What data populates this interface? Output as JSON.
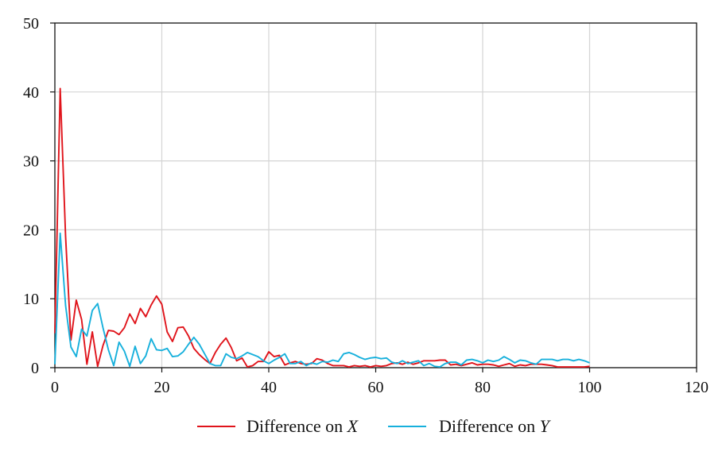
{
  "chart_data": {
    "type": "line",
    "title": "",
    "xlabel": "",
    "ylabel": "",
    "xlim": [
      0,
      120
    ],
    "ylim": [
      0,
      50
    ],
    "xticks": [
      0,
      20,
      40,
      60,
      80,
      100,
      120
    ],
    "yticks": [
      0,
      10,
      20,
      30,
      40,
      50
    ],
    "grid": true,
    "legend_position": "bottom-center",
    "x": [
      0,
      1,
      2,
      3,
      4,
      5,
      6,
      7,
      8,
      9,
      10,
      11,
      12,
      13,
      14,
      15,
      16,
      17,
      18,
      19,
      20,
      21,
      22,
      23,
      24,
      25,
      26,
      27,
      28,
      29,
      30,
      31,
      32,
      33,
      34,
      35,
      36,
      37,
      38,
      39,
      40,
      41,
      42,
      43,
      44,
      45,
      46,
      47,
      48,
      49,
      50,
      51,
      52,
      53,
      54,
      55,
      56,
      57,
      58,
      59,
      60,
      61,
      62,
      63,
      64,
      65,
      66,
      67,
      68,
      69,
      70,
      71,
      72,
      73,
      74,
      75,
      76,
      77,
      78,
      79,
      80,
      81,
      82,
      83,
      84,
      85,
      86,
      87,
      88,
      89,
      90,
      91,
      92,
      93,
      94,
      95,
      96,
      97,
      98,
      99,
      100
    ],
    "series": [
      {
        "name": "Difference on X",
        "legend_prefix": "Difference on ",
        "legend_var": "X",
        "color": "#e0141b",
        "values": [
          5,
          40.5,
          19,
          4,
          9.8,
          7,
          0.5,
          5.2,
          0.2,
          3.2,
          5.4,
          5.3,
          4.8,
          5.8,
          7.8,
          6.4,
          8.6,
          7.4,
          9.1,
          10.4,
          9.2,
          5.2,
          3.8,
          5.8,
          5.9,
          4.6,
          2.8,
          1.9,
          1.2,
          0.6,
          2.2,
          3.4,
          4.3,
          2.9,
          1.0,
          1.4,
          0.1,
          0.3,
          0.9,
          0.9,
          2.3,
          1.6,
          1.8,
          0.4,
          0.7,
          0.9,
          0.6,
          0.5,
          0.6,
          1.3,
          1.1,
          0.6,
          0.3,
          0.3,
          0.3,
          0.1,
          0.3,
          0.2,
          0.3,
          0.1,
          0.3,
          0.2,
          0.3,
          0.6,
          0.7,
          0.5,
          0.8,
          0.5,
          0.7,
          1.0,
          1.0,
          1.0,
          1.1,
          1.1,
          0.4,
          0.5,
          0.3,
          0.5,
          0.7,
          0.4,
          0.5,
          0.5,
          0.4,
          0.2,
          0.4,
          0.6,
          0.2,
          0.4,
          0.3,
          0.5,
          0.5,
          0.5,
          0.4,
          0.3,
          0.1,
          0.1,
          0.1,
          0.1,
          0.1,
          0.1,
          0.2
        ]
      },
      {
        "name": "Difference on Y",
        "legend_prefix": "Difference on ",
        "legend_var": "Y",
        "color": "#17b0dc",
        "values": [
          0.5,
          19.5,
          9,
          3,
          1.6,
          5.6,
          4.6,
          8.3,
          9.3,
          5.8,
          2.6,
          0.3,
          3.7,
          2.4,
          0.2,
          3.1,
          0.6,
          1.7,
          4.2,
          2.6,
          2.5,
          2.8,
          1.6,
          1.7,
          2.3,
          3.4,
          4.4,
          3.4,
          2.0,
          0.6,
          0.3,
          0.3,
          2.0,
          1.5,
          1.3,
          1.7,
          2.2,
          1.9,
          1.6,
          1.0,
          0.6,
          1.1,
          1.5,
          2.0,
          0.6,
          0.6,
          0.9,
          0.3,
          0.7,
          0.5,
          0.9,
          0.8,
          1.1,
          0.9,
          2.0,
          2.2,
          1.9,
          1.5,
          1.2,
          1.4,
          1.5,
          1.3,
          1.4,
          0.8,
          0.6,
          1.0,
          0.6,
          0.8,
          1.0,
          0.3,
          0.6,
          0.2,
          0.1,
          0.6,
          0.8,
          0.8,
          0.4,
          1.1,
          1.2,
          1.0,
          0.7,
          1.1,
          0.9,
          1.1,
          1.6,
          1.2,
          0.7,
          1.1,
          1.0,
          0.7,
          0.5,
          1.2,
          1.2,
          1.2,
          1.0,
          1.2,
          1.2,
          1.0,
          1.2,
          1.0,
          0.7
        ]
      }
    ]
  }
}
